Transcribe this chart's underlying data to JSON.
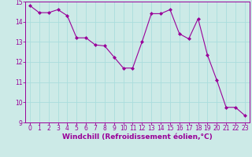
{
  "x": [
    0,
    1,
    2,
    3,
    4,
    5,
    6,
    7,
    8,
    9,
    10,
    11,
    12,
    13,
    14,
    15,
    16,
    17,
    18,
    19,
    20,
    21,
    22,
    23
  ],
  "y": [
    14.8,
    14.45,
    14.45,
    14.6,
    14.3,
    13.2,
    13.2,
    12.85,
    12.8,
    12.25,
    11.7,
    11.7,
    13.0,
    14.4,
    14.4,
    14.6,
    13.4,
    13.15,
    14.15,
    12.35,
    11.1,
    9.75,
    9.75,
    9.35
  ],
  "line_color": "#990099",
  "marker": "D",
  "marker_size": 2,
  "bg_color": "#cceae7",
  "grid_color": "#aadddd",
  "xlabel": "Windchill (Refroidissement éolien,°C)",
  "xlabel_color": "#990099",
  "tick_color": "#990099",
  "spine_color": "#990099",
  "ylim": [
    9,
    15
  ],
  "xlim": [
    -0.5,
    23.5
  ],
  "yticks": [
    9,
    10,
    11,
    12,
    13,
    14,
    15
  ],
  "xticks": [
    0,
    1,
    2,
    3,
    4,
    5,
    6,
    7,
    8,
    9,
    10,
    11,
    12,
    13,
    14,
    15,
    16,
    17,
    18,
    19,
    20,
    21,
    22,
    23
  ],
  "tick_fontsize": 5.5,
  "xlabel_fontsize": 6.5
}
